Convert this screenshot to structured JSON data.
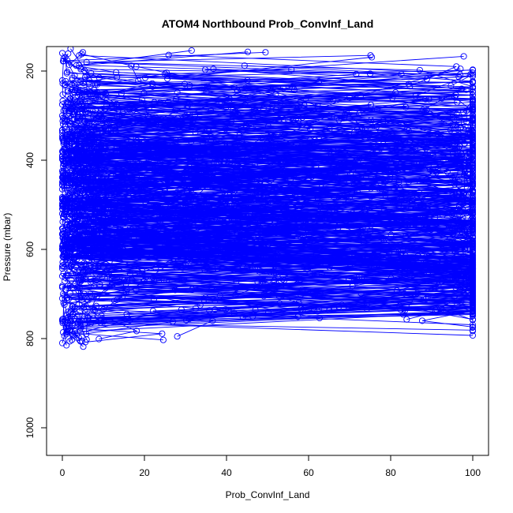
{
  "chart_data": {
    "type": "scatter",
    "title": "ATOM4 Northbound Prob_ConvInf_Land",
    "xlabel": "Prob_ConvInf_Land",
    "ylabel": "Pressure (mbar)",
    "xlim": [
      0,
      100
    ],
    "ylim": [
      1050,
      150
    ],
    "y_axis_reversed": true,
    "x_ticks": [
      "0",
      "20",
      "40",
      "60",
      "80",
      "100"
    ],
    "y_ticks": [
      "200",
      "400",
      "600",
      "800",
      "1000"
    ],
    "grid": false,
    "legend": "none",
    "marker": "open-circle",
    "connected": true,
    "series_color": "#0000ff",
    "profile_count": 140,
    "series": [
      {
        "x": [
          0,
          3,
          12,
          5,
          0,
          22,
          8,
          0,
          15,
          2,
          0
        ],
        "y": [
          160,
          210,
          280,
          340,
          390,
          450,
          520,
          600,
          670,
          740,
          810
        ]
      },
      {
        "x": [
          18,
          45,
          30,
          62,
          25,
          10,
          40,
          5,
          0,
          1
        ],
        "y": [
          190,
          240,
          300,
          360,
          420,
          490,
          560,
          640,
          710,
          790
        ]
      },
      {
        "x": [
          97,
          70,
          55,
          85,
          60,
          40,
          75,
          30,
          20,
          10
        ],
        "y": [
          195,
          260,
          310,
          380,
          440,
          500,
          560,
          610,
          670,
          735
        ]
      },
      {
        "x": [
          65,
          50,
          80,
          100,
          85,
          100,
          90,
          100,
          100
        ],
        "y": [
          300,
          360,
          430,
          485,
          530,
          590,
          640,
          670,
          730
        ]
      },
      {
        "x": [
          2,
          8,
          0,
          14,
          5,
          0,
          33,
          12,
          0,
          1
        ],
        "y": [
          150,
          230,
          300,
          370,
          440,
          520,
          600,
          680,
          760,
          815
        ]
      }
    ]
  }
}
